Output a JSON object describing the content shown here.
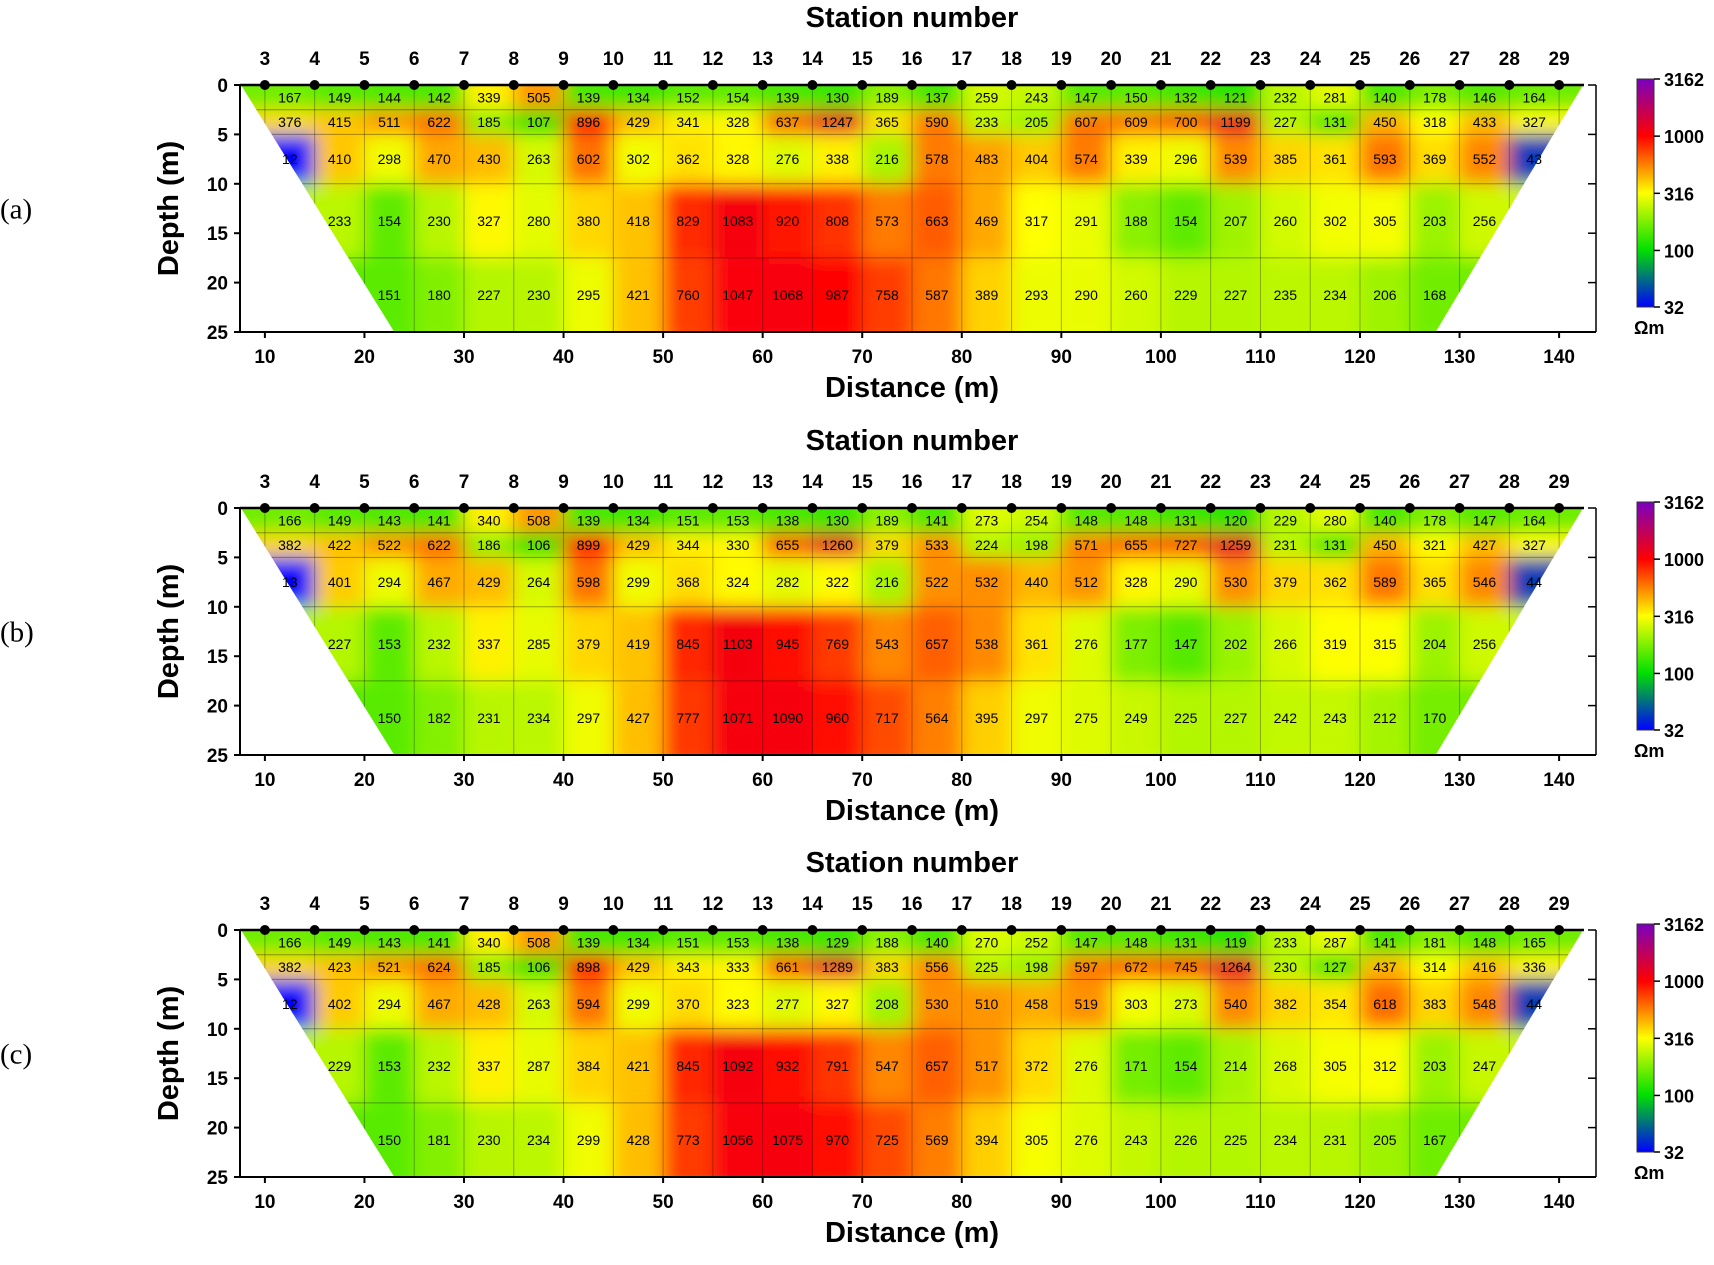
{
  "colorbar": {
    "scale": "log",
    "ticks": [
      "3162",
      "1000",
      "316",
      "100",
      "32"
    ],
    "tick_values": [
      3162,
      1000,
      316,
      100,
      32
    ],
    "unit": "Ωm",
    "colors": {
      "32": "#0000ff",
      "100": "#00e000",
      "316": "#ffff00",
      "1000": "#ff0000",
      "3162": "#7a00c0"
    }
  },
  "chart_data": [
    {
      "type": "heatmap",
      "panel_label": "(a)",
      "title": "Station number",
      "xlabel": "Distance (m)",
      "ylabel": "Depth (m)",
      "xlim": [
        7.5,
        142.5
      ],
      "ylim": [
        25,
        0
      ],
      "x_ticks": [
        "10",
        "20",
        "30",
        "40",
        "50",
        "60",
        "70",
        "80",
        "90",
        "100",
        "110",
        "120",
        "130",
        "140"
      ],
      "y_ticks": [
        "0",
        "5",
        "10",
        "15",
        "20",
        "25"
      ],
      "stations": [
        "3",
        "4",
        "5",
        "6",
        "7",
        "8",
        "9",
        "10",
        "11",
        "12",
        "13",
        "14",
        "15",
        "16",
        "17",
        "18",
        "19",
        "20",
        "21",
        "22",
        "23",
        "24",
        "25",
        "26",
        "27",
        "28",
        "29"
      ],
      "station_distance_start": 10,
      "station_distance_step": 5,
      "rows": [
        {
          "depth": 1.25,
          "x_start": 12.5,
          "x_step": 5,
          "values": [
            "167",
            "149",
            "144",
            "142",
            "339",
            "505",
            "139",
            "134",
            "152",
            "154",
            "139",
            "130",
            "189",
            "137",
            "259",
            "243",
            "147",
            "150",
            "132",
            "121",
            "232",
            "281",
            "140",
            "178",
            "146",
            "164"
          ]
        },
        {
          "depth": 3.75,
          "x_start": 12.5,
          "x_step": 5,
          "values": [
            "376",
            "415",
            "511",
            "622",
            "185",
            "107",
            "896",
            "429",
            "341",
            "328",
            "637",
            "1247",
            "365",
            "590",
            "233",
            "205",
            "607",
            "609",
            "700",
            "1199",
            "227",
            "131",
            "450",
            "318",
            "433",
            "327"
          ]
        },
        {
          "depth": 7.5,
          "x_start": 12.5,
          "x_step": 5,
          "values": [
            "12",
            "410",
            "298",
            "470",
            "430",
            "263",
            "602",
            "302",
            "362",
            "328",
            "276",
            "338",
            "216",
            "578",
            "483",
            "404",
            "574",
            "339",
            "296",
            "539",
            "385",
            "361",
            "593",
            "369",
            "552",
            "43"
          ]
        },
        {
          "depth": 13.75,
          "x_start": 17.5,
          "x_step": 5,
          "values": [
            "233",
            "154",
            "230",
            "327",
            "280",
            "380",
            "418",
            "829",
            "1083",
            "920",
            "808",
            "573",
            "663",
            "469",
            "317",
            "291",
            "188",
            "154",
            "207",
            "260",
            "302",
            "305",
            "203",
            "256"
          ]
        },
        {
          "depth": 21.25,
          "x_start": 22.5,
          "x_step": 5,
          "values": [
            "151",
            "180",
            "227",
            "230",
            "295",
            "421",
            "760",
            "1047",
            "1068",
            "987",
            "758",
            "587",
            "389",
            "293",
            "290",
            "260",
            "229",
            "227",
            "235",
            "234",
            "206",
            "168"
          ]
        }
      ]
    },
    {
      "type": "heatmap",
      "panel_label": "(b)",
      "title": "Station number",
      "xlabel": "Distance (m)",
      "ylabel": "Depth (m)",
      "xlim": [
        7.5,
        142.5
      ],
      "ylim": [
        25,
        0
      ],
      "x_ticks": [
        "10",
        "20",
        "30",
        "40",
        "50",
        "60",
        "70",
        "80",
        "90",
        "100",
        "110",
        "120",
        "130",
        "140"
      ],
      "y_ticks": [
        "0",
        "5",
        "10",
        "15",
        "20",
        "25"
      ],
      "stations": [
        "3",
        "4",
        "5",
        "6",
        "7",
        "8",
        "9",
        "10",
        "11",
        "12",
        "13",
        "14",
        "15",
        "16",
        "17",
        "18",
        "19",
        "20",
        "21",
        "22",
        "23",
        "24",
        "25",
        "26",
        "27",
        "28",
        "29"
      ],
      "station_distance_start": 10,
      "station_distance_step": 5,
      "rows": [
        {
          "depth": 1.25,
          "x_start": 12.5,
          "x_step": 5,
          "values": [
            "166",
            "149",
            "143",
            "141",
            "340",
            "508",
            "139",
            "134",
            "151",
            "153",
            "138",
            "130",
            "189",
            "141",
            "273",
            "254",
            "148",
            "148",
            "131",
            "120",
            "229",
            "280",
            "140",
            "178",
            "147",
            "164"
          ]
        },
        {
          "depth": 3.75,
          "x_start": 12.5,
          "x_step": 5,
          "values": [
            "382",
            "422",
            "522",
            "622",
            "186",
            "106",
            "899",
            "429",
            "344",
            "330",
            "655",
            "1260",
            "379",
            "533",
            "224",
            "198",
            "571",
            "655",
            "727",
            "1259",
            "231",
            "131",
            "450",
            "321",
            "427",
            "327"
          ]
        },
        {
          "depth": 7.5,
          "x_start": 12.5,
          "x_step": 5,
          "values": [
            "13",
            "401",
            "294",
            "467",
            "429",
            "264",
            "598",
            "299",
            "368",
            "324",
            "282",
            "322",
            "216",
            "522",
            "532",
            "440",
            "512",
            "328",
            "290",
            "530",
            "379",
            "362",
            "589",
            "365",
            "546",
            "44"
          ]
        },
        {
          "depth": 13.75,
          "x_start": 17.5,
          "x_step": 5,
          "values": [
            "227",
            "153",
            "232",
            "337",
            "285",
            "379",
            "419",
            "845",
            "1103",
            "945",
            "769",
            "543",
            "657",
            "538",
            "361",
            "276",
            "177",
            "147",
            "202",
            "266",
            "319",
            "315",
            "204",
            "256"
          ]
        },
        {
          "depth": 21.25,
          "x_start": 22.5,
          "x_step": 5,
          "values": [
            "150",
            "182",
            "231",
            "234",
            "297",
            "427",
            "777",
            "1071",
            "1090",
            "960",
            "717",
            "564",
            "395",
            "297",
            "275",
            "249",
            "225",
            "227",
            "242",
            "243",
            "212",
            "170"
          ]
        }
      ]
    },
    {
      "type": "heatmap",
      "panel_label": "(c)",
      "title": "Station number",
      "xlabel": "Distance (m)",
      "ylabel": "Depth (m)",
      "xlim": [
        7.5,
        142.5
      ],
      "ylim": [
        25,
        0
      ],
      "x_ticks": [
        "10",
        "20",
        "30",
        "40",
        "50",
        "60",
        "70",
        "80",
        "90",
        "100",
        "110",
        "120",
        "130",
        "140"
      ],
      "y_ticks": [
        "0",
        "5",
        "10",
        "15",
        "20",
        "25"
      ],
      "stations": [
        "3",
        "4",
        "5",
        "6",
        "7",
        "8",
        "9",
        "10",
        "11",
        "12",
        "13",
        "14",
        "15",
        "16",
        "17",
        "18",
        "19",
        "20",
        "21",
        "22",
        "23",
        "24",
        "25",
        "26",
        "27",
        "28",
        "29"
      ],
      "station_distance_start": 10,
      "station_distance_step": 5,
      "rows": [
        {
          "depth": 1.25,
          "x_start": 12.5,
          "x_step": 5,
          "values": [
            "166",
            "149",
            "143",
            "141",
            "340",
            "508",
            "139",
            "134",
            "151",
            "153",
            "138",
            "129",
            "188",
            "140",
            "270",
            "252",
            "147",
            "148",
            "131",
            "119",
            "233",
            "287",
            "141",
            "181",
            "148",
            "165"
          ]
        },
        {
          "depth": 3.75,
          "x_start": 12.5,
          "x_step": 5,
          "values": [
            "382",
            "423",
            "521",
            "624",
            "185",
            "106",
            "898",
            "429",
            "343",
            "333",
            "661",
            "1289",
            "383",
            "556",
            "225",
            "198",
            "597",
            "672",
            "745",
            "1264",
            "230",
            "127",
            "437",
            "314",
            "416",
            "336"
          ]
        },
        {
          "depth": 7.5,
          "x_start": 12.5,
          "x_step": 5,
          "values": [
            "12",
            "402",
            "294",
            "467",
            "428",
            "263",
            "594",
            "299",
            "370",
            "323",
            "277",
            "327",
            "208",
            "530",
            "510",
            "458",
            "519",
            "303",
            "273",
            "540",
            "382",
            "354",
            "618",
            "383",
            "548",
            "44"
          ]
        },
        {
          "depth": 13.75,
          "x_start": 17.5,
          "x_step": 5,
          "values": [
            "229",
            "153",
            "232",
            "337",
            "287",
            "384",
            "421",
            "845",
            "1092",
            "932",
            "791",
            "547",
            "657",
            "517",
            "372",
            "276",
            "171",
            "154",
            "214",
            "268",
            "305",
            "312",
            "203",
            "247"
          ]
        },
        {
          "depth": 21.25,
          "x_start": 22.5,
          "x_step": 5,
          "values": [
            "150",
            "181",
            "230",
            "234",
            "299",
            "428",
            "773",
            "1056",
            "1075",
            "970",
            "725",
            "569",
            "394",
            "305",
            "276",
            "243",
            "226",
            "225",
            "234",
            "231",
            "205",
            "167"
          ]
        }
      ]
    }
  ]
}
